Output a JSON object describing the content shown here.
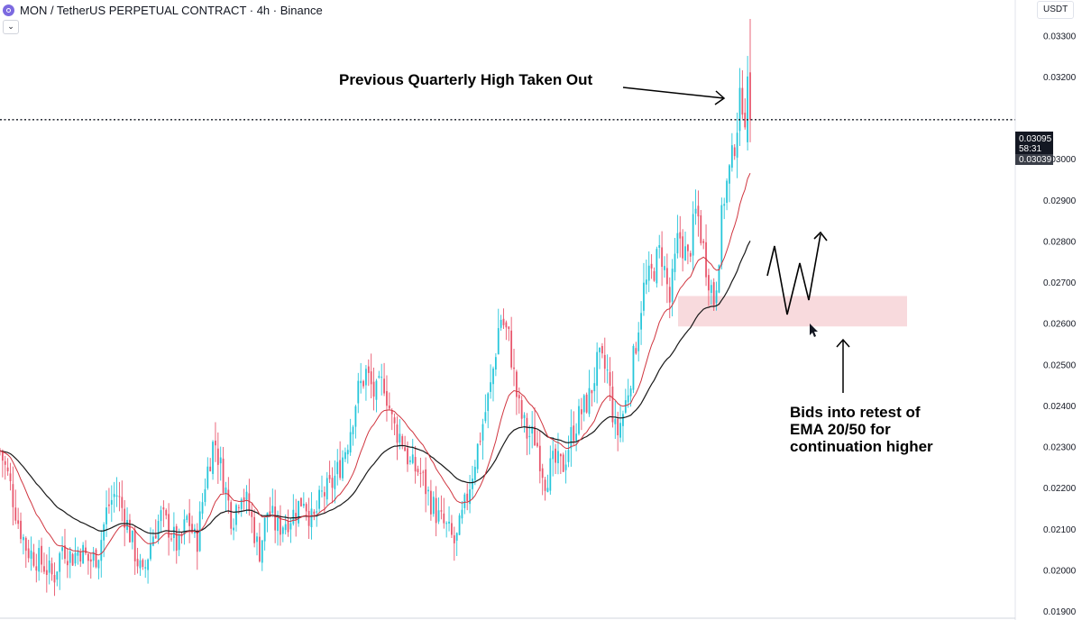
{
  "header": {
    "title": "MON / TetherUS PERPETUAL CONTRACT · 4h · Binance",
    "currency": "USDT",
    "collapse_glyph": "⌄",
    "logo_icon": "mon-coin-icon"
  },
  "annotations": {
    "top": "Previous Quarterly High Taken Out",
    "bottom": "Bids into retest of\nEMA 20/50 for\ncontinuation higher"
  },
  "price_tags": {
    "upper": "0.03095",
    "countdown": "58:31",
    "lower": "0.03039"
  },
  "colors": {
    "up": "#26c6da",
    "down": "#e8566c",
    "ema20": "#d0353f",
    "ema50": "#1a1a1a",
    "zone": "#f6cdd2"
  },
  "chart_data": {
    "type": "candlestick",
    "symbol": "MON / TetherUS PERPETUAL CONTRACT",
    "timeframe": "4h",
    "exchange": "Binance",
    "ylim": [
      0.019,
      0.0334
    ],
    "yticks": [
      "0.01900",
      "0.02000",
      "0.02100",
      "0.02200",
      "0.02300",
      "0.02400",
      "0.02500",
      "0.02600",
      "0.02700",
      "0.02800",
      "0.02900",
      "0.03000",
      "0.03200",
      "0.03300"
    ],
    "close_path": [
      0.0229,
      0.0222,
      0.0212,
      0.0205,
      0.0203,
      0.0201,
      0.0198,
      0.0206,
      0.0203,
      0.0205,
      0.0202,
      0.0204,
      0.0215,
      0.0219,
      0.0213,
      0.0205,
      0.0198,
      0.0208,
      0.0213,
      0.021,
      0.0205,
      0.0213,
      0.0206,
      0.0222,
      0.0232,
      0.0222,
      0.0212,
      0.022,
      0.0214,
      0.0204,
      0.0215,
      0.021,
      0.0212,
      0.0214,
      0.0218,
      0.0211,
      0.0218,
      0.022,
      0.0225,
      0.0232,
      0.0243,
      0.0248,
      0.0242,
      0.0246,
      0.0235,
      0.0232,
      0.0225,
      0.0224,
      0.0218,
      0.0213,
      0.021,
      0.0206,
      0.0215,
      0.0225,
      0.0235,
      0.0245,
      0.0262,
      0.0256,
      0.024,
      0.0233,
      0.0232,
      0.0222,
      0.0226,
      0.0225,
      0.0233,
      0.0238,
      0.0242,
      0.0251,
      0.0248,
      0.0232,
      0.024,
      0.0252,
      0.0268,
      0.0272,
      0.0278,
      0.0265,
      0.0282,
      0.0275,
      0.0288,
      0.0275,
      0.0265,
      0.029,
      0.03,
      0.0316,
      0.0304
    ],
    "ema_periods": [
      20,
      50
    ],
    "horizontal_level": 0.03095,
    "last_price": 0.03039,
    "zone": {
      "low": 0.02592,
      "high": 0.02666
    }
  }
}
